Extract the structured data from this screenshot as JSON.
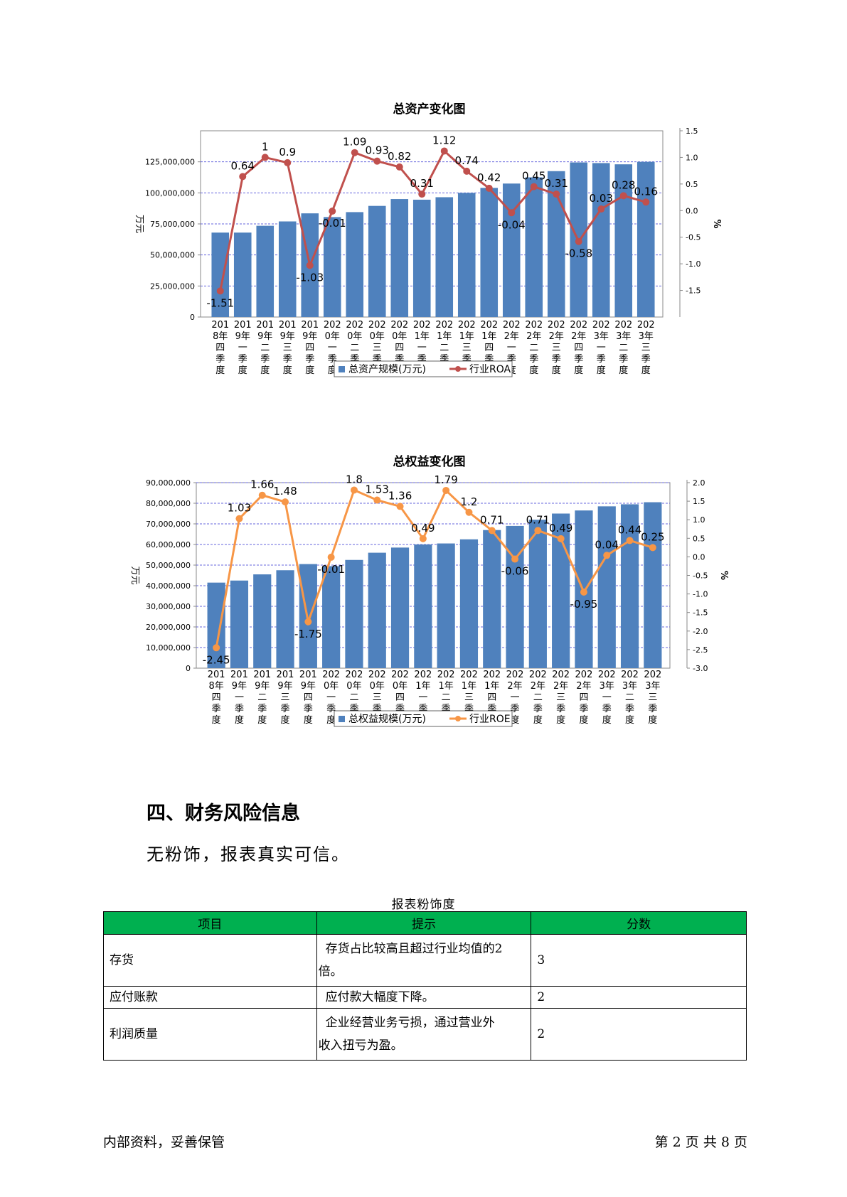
{
  "charts": [
    {
      "title": "总资产变化图",
      "ylabel_left": "万元",
      "ylabel_right": "%",
      "left_ticks": [
        "0",
        "25,000,000",
        "50,000,000",
        "75,000,000",
        "100,000,000",
        "125,000,000"
      ],
      "right_ticks": [
        "-1.5",
        "-1.0",
        "-0.5",
        "0.0",
        "0.5",
        "1.0",
        "1.5"
      ],
      "legend": [
        "总资产规模(万元)",
        "行业ROA"
      ]
    },
    {
      "title": "总权益变化图",
      "ylabel_left": "万元",
      "ylabel_right": "%",
      "left_ticks": [
        "0",
        "10,000,000",
        "20,000,000",
        "30,000,000",
        "40,000,000",
        "50,000,000",
        "60,000,000",
        "70,000,000",
        "80,000,000",
        "90,000,000"
      ],
      "right_ticks": [
        "-3.0",
        "-2.5",
        "-2.0",
        "-1.5",
        "-1.0",
        "-0.5",
        "0.0",
        "0.5",
        "1.0",
        "1.5",
        "2.0"
      ],
      "legend": [
        "总权益规模(万元)",
        "行业ROE"
      ]
    }
  ],
  "chart_data": [
    {
      "type": "bar",
      "title": "总资产变化图",
      "ylabel": "万元",
      "y2label": "%",
      "ylim": [
        0,
        150000000
      ],
      "y2lim": [
        -2.0,
        1.5
      ],
      "grid": true,
      "legend_position": "bottom",
      "categories": [
        "2018年四季度",
        "2019年一季度",
        "2019年二季度",
        "2019年三季度",
        "2019年四季度",
        "2020年一季度",
        "2020年二季度",
        "2020年三季度",
        "2020年四季度",
        "2021年一季度",
        "2021年二季度",
        "2021年三季度",
        "2021年四季度",
        "2022年一季度",
        "2022年二季度",
        "2022年三季度",
        "2022年四季度",
        "2023年一季度",
        "2023年二季度",
        "2023年三季度"
      ],
      "series": [
        {
          "name": "总资产规模(万元)",
          "type": "bar",
          "color": "#4f81bd",
          "values": [
            68000000,
            68000000,
            73500000,
            77000000,
            83500000,
            80500000,
            84500000,
            89500000,
            95000000,
            94500000,
            96500000,
            100000000,
            104000000,
            107500000,
            112500000,
            117500000,
            124500000,
            124000000,
            123000000,
            125000000
          ]
        },
        {
          "name": "行业ROA",
          "type": "line",
          "axis": "right",
          "color": "#c0504d",
          "values": [
            -1.51,
            0.64,
            1,
            0.9,
            -1.03,
            -0.01,
            1.09,
            0.93,
            0.82,
            0.31,
            1.12,
            0.74,
            0.42,
            -0.04,
            0.45,
            0.31,
            -0.58,
            0.03,
            0.28,
            0.16
          ],
          "labels": [
            "-1.51",
            "0.64",
            "1",
            "0.9",
            "-1.03",
            "-0.01",
            "1.09",
            "0.93",
            "0.82",
            "0.31",
            "1.12",
            "0.74",
            "0.42",
            "-0.04",
            "0.45",
            "0.31",
            "-0.58",
            "0.03",
            "0.28",
            "0.16"
          ]
        }
      ]
    },
    {
      "type": "bar",
      "title": "总权益变化图",
      "ylabel": "万元",
      "y2label": "%",
      "ylim": [
        0,
        90000000
      ],
      "y2lim": [
        -3.0,
        2.0
      ],
      "grid": true,
      "legend_position": "bottom",
      "categories": [
        "2018年四季度",
        "2019年一季度",
        "2019年二季度",
        "2019年三季度",
        "2019年四季度",
        "2020年一季度",
        "2020年二季度",
        "2020年三季度",
        "2020年四季度",
        "2021年一季度",
        "2021年二季度",
        "2021年三季度",
        "2021年四季度",
        "2022年一季度",
        "2022年二季度",
        "2022年三季度",
        "2022年四季度",
        "2023年一季度",
        "2023年二季度",
        "2023年三季度"
      ],
      "series": [
        {
          "name": "总权益规模(万元)",
          "type": "bar",
          "color": "#4f81bd",
          "values": [
            41500000,
            42500000,
            45500000,
            47500000,
            50500000,
            49500000,
            52500000,
            56000000,
            58500000,
            60000000,
            60500000,
            62500000,
            67000000,
            69000000,
            72000000,
            75000000,
            76500000,
            78500000,
            79500000,
            80500000
          ]
        },
        {
          "name": "行业ROE",
          "type": "line",
          "axis": "right",
          "color": "#f79646",
          "values": [
            -2.45,
            1.03,
            1.66,
            1.48,
            -1.75,
            -0.01,
            1.8,
            1.53,
            1.36,
            0.49,
            1.79,
            1.2,
            0.71,
            -0.06,
            0.71,
            0.49,
            -0.95,
            0.04,
            0.44,
            0.25
          ],
          "labels": [
            "-2.45",
            "1.03",
            "1.66",
            "1.48",
            "-1.75",
            "-0.01",
            "1.8",
            "1.53",
            "1.36",
            "0.49",
            "1.79",
            "1.2",
            "0.71",
            "-0.06",
            "0.71",
            "0.49",
            "-0.95",
            "0.04",
            "0.44",
            "0.25"
          ]
        }
      ]
    }
  ],
  "section": {
    "heading": "四、财务风险信息",
    "body": "无粉饰，报表真实可信。"
  },
  "table": {
    "caption": "报表粉饰度",
    "headers": [
      "项目",
      "提示",
      "分数"
    ],
    "rows": [
      {
        "item": "存货",
        "hint_line1": "存货占比较高且超过行业均值的2",
        "hint_line2": "倍。",
        "score": "3"
      },
      {
        "item": "应付账款",
        "hint_line1": "应付款大幅度下降。",
        "hint_line2": "",
        "score": "2"
      },
      {
        "item": "利润质量",
        "hint_line1": "企业经营业务亏损，通过营业外",
        "hint_line2": "收入扭亏为盈。",
        "score": "2"
      }
    ]
  },
  "footer": {
    "left": "内部资料，妥善保管",
    "right": "第 2 页   共 8 页"
  },
  "colors": {
    "bar": "#4f81bd",
    "roa_line": "#c0504d",
    "roe_line": "#f79646",
    "header_green": "#00b050",
    "grid": "#6666dd"
  }
}
